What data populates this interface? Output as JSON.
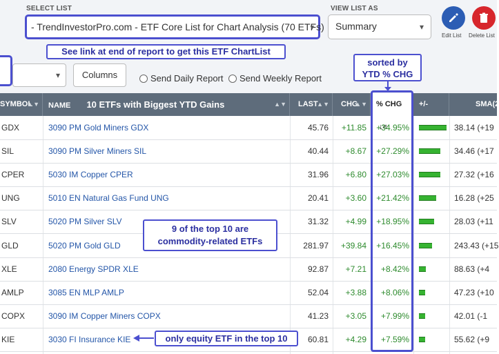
{
  "header": {
    "select_list_label": "SELECT LIST",
    "select_list_value": "- TrendInvestorPro.com - ETF Core List for Chart Analysis (70 ETFs)",
    "view_list_label": "VIEW LIST AS",
    "view_list_value": "Summary",
    "edit_label": "Edit List",
    "delete_label": "Delete List",
    "columns_label": "Columns",
    "send_daily": "Send Daily Report",
    "send_weekly": "Send Weekly Report"
  },
  "annotations": {
    "link_note": "See link at end of report to get this ETF ChartList",
    "sorted_note_line1": "sorted by",
    "sorted_note_line2": "YTD % CHG",
    "commodity_note_line1": "9 of the top 10 are",
    "commodity_note_line2": "commodity-related ETFs",
    "equity_note": "only equity ETF in the top 10",
    "accent_color": "#4b4fcf"
  },
  "table": {
    "columns": {
      "symbol": "SYMBOL",
      "name": "NAME",
      "name_title": "10 ETFs with Biggest YTD Gains",
      "last": "LAST",
      "chg": "CHG",
      "pct_chg": "% CHG",
      "plus_minus": "+/-",
      "sma": "SMA(2"
    },
    "rows": [
      {
        "symbol": "GDX",
        "name": "3090 PM Gold Miners GDX",
        "last": "45.76",
        "chg": "+11.85",
        "pct": "+34.95%",
        "pct_value": 34.95,
        "sma": "38.14 (+19"
      },
      {
        "symbol": "SIL",
        "name": "3090 PM Silver Miners SIL",
        "last": "40.44",
        "chg": "+8.67",
        "pct": "+27.29%",
        "pct_value": 27.29,
        "sma": "34.46 (+17"
      },
      {
        "symbol": "CPER",
        "name": "5030 IM Copper CPER",
        "last": "31.96",
        "chg": "+6.80",
        "pct": "+27.03%",
        "pct_value": 27.03,
        "sma": "27.32 (+16"
      },
      {
        "symbol": "UNG",
        "name": "5010 EN Natural Gas Fund UNG",
        "last": "20.41",
        "chg": "+3.60",
        "pct": "+21.42%",
        "pct_value": 21.42,
        "sma": "16.28 (+25"
      },
      {
        "symbol": "SLV",
        "name": "5020 PM Silver SLV",
        "last": "31.32",
        "chg": "+4.99",
        "pct": "+18.95%",
        "pct_value": 18.95,
        "sma": "28.03 (+11"
      },
      {
        "symbol": "GLD",
        "name": "5020 PM Gold GLD",
        "last": "281.97",
        "chg": "+39.84",
        "pct": "+16.45%",
        "pct_value": 16.45,
        "sma": "243.43 (+15"
      },
      {
        "symbol": "XLE",
        "name": "2080 Energy SPDR XLE",
        "last": "92.87",
        "chg": "+7.21",
        "pct": "+8.42%",
        "pct_value": 8.42,
        "sma": "88.63 (+4"
      },
      {
        "symbol": "AMLP",
        "name": "3085 EN MLP AMLP",
        "last": "52.04",
        "chg": "+3.88",
        "pct": "+8.06%",
        "pct_value": 8.06,
        "sma": "47.23 (+10"
      },
      {
        "symbol": "COPX",
        "name": "3090 IM Copper Miners COPX",
        "last": "41.23",
        "chg": "+3.05",
        "pct": "+7.99%",
        "pct_value": 7.99,
        "sma": "42.01 (-1"
      },
      {
        "symbol": "KIE",
        "name": "3030 FI Insurance KIE",
        "last": "60.81",
        "chg": "+4.29",
        "pct": "+7.59%",
        "pct_value": 7.59,
        "sma": "55.62 (+9"
      }
    ]
  }
}
